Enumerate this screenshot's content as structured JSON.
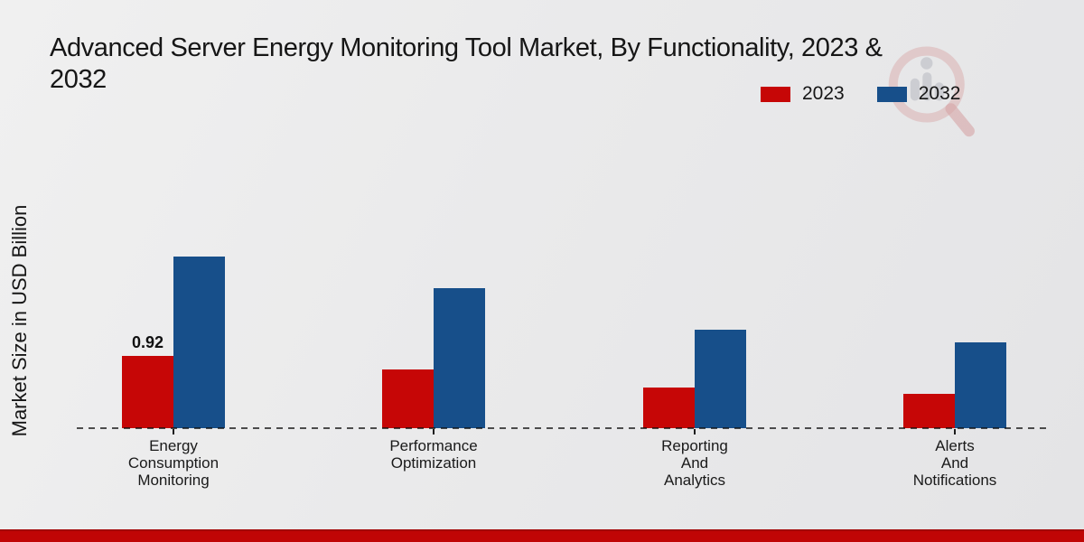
{
  "title": "Advanced Server Energy Monitoring Tool Market, By Functionality, 2023 & 2032",
  "y_axis_label": "Market Size in USD Billion",
  "legend": {
    "items": [
      {
        "label": "2023",
        "color": "#c60606"
      },
      {
        "label": "2032",
        "color": "#174f8a"
      }
    ]
  },
  "colors": {
    "bar_2023": "#c60606",
    "bar_2032": "#174f8a",
    "background": "#eaeaeb",
    "bottom_strip": "#c00505",
    "text": "#161616"
  },
  "watermark_icon": "magnifier-bar-chart-logo",
  "chart_data": {
    "type": "bar",
    "title": "Advanced Server Energy Monitoring Tool Market, By Functionality, 2023 & 2032",
    "xlabel": "",
    "ylabel": "Market Size in USD Billion",
    "categories": [
      "Energy\nConsumption\nMonitoring",
      "Performance\nOptimization",
      "Reporting\nAnd\nAnalytics",
      "Alerts\nAnd\nNotifications"
    ],
    "series": [
      {
        "name": "2023",
        "color": "#c60606",
        "values": [
          0.92,
          0.75,
          0.52,
          0.44
        ]
      },
      {
        "name": "2032",
        "color": "#174f8a",
        "values": [
          2.18,
          1.78,
          1.25,
          1.09
        ]
      }
    ],
    "bar_labels": [
      {
        "series": "2023",
        "category_index": 0,
        "text": "0.92"
      }
    ],
    "ylim": [
      0,
      2.4
    ],
    "grid": false,
    "y_axis_ticks_visible": false,
    "legend_position": "top-right",
    "baseline_style": "dashed"
  }
}
